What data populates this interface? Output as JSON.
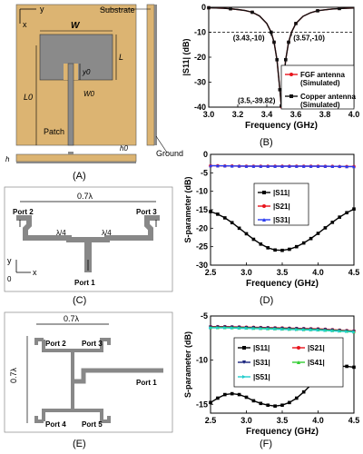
{
  "panels": {
    "A": {
      "caption": "(A)",
      "labels": [
        "Substrate",
        "W",
        "L",
        "y0",
        "L0",
        "W0",
        "Patch",
        "h0",
        "h",
        "Ground"
      ],
      "axis_y": "y",
      "axis_x": "x",
      "colors": {
        "substrate": "#dcb472",
        "metal": "#8a8a8a"
      }
    },
    "B": {
      "caption": "(B)"
    },
    "C": {
      "caption": "(C)",
      "labels": [
        "0.7λ",
        "Port 2",
        "Port 3",
        "λ/4",
        "λ/4",
        "Port 1"
      ],
      "axis_y": "y",
      "axis_x": "x",
      "origin": "0"
    },
    "D": {
      "caption": "(D)"
    },
    "E": {
      "caption": "(E)",
      "labels": [
        "0.7λ",
        "Port 2",
        "Port 3",
        "Port 1",
        "Port 4",
        "Port 5"
      ],
      "side_label": "0.7λ"
    },
    "F": {
      "caption": "(F)"
    }
  },
  "chart_data": [
    {
      "panel": "B",
      "type": "line",
      "xlabel": "Frequency (GHz)",
      "ylabel": "|S11| (dB)",
      "xlim": [
        3.0,
        4.0
      ],
      "ylim": [
        -40,
        0
      ],
      "xticks": [
        "3.0",
        "3.2",
        "3.4",
        "3.6",
        "3.8",
        "4.0"
      ],
      "yticks": [
        "0",
        "-10",
        "-20",
        "-30",
        "-40"
      ],
      "ref_line": -10,
      "annotations": [
        "(3.43,-10)",
        "(3.57,-10)",
        "(3.5,-39.82)"
      ],
      "series": [
        {
          "name": "FGF antenna (Simulated)",
          "color": "#e8141c",
          "x": [
            3.0,
            3.05,
            3.1,
            3.15,
            3.2,
            3.25,
            3.3,
            3.35,
            3.4,
            3.43,
            3.45,
            3.47,
            3.49,
            3.5,
            3.51,
            3.53,
            3.55,
            3.57,
            3.6,
            3.65,
            3.7,
            3.75,
            3.8,
            3.85,
            3.9,
            3.95,
            4.0
          ],
          "y": [
            -0.2,
            -0.3,
            -0.4,
            -0.6,
            -0.9,
            -1.3,
            -2.0,
            -3.5,
            -6.5,
            -10,
            -14,
            -21,
            -33,
            -39.82,
            -33,
            -21,
            -14,
            -10,
            -6.5,
            -3.6,
            -2.2,
            -1.4,
            -1.0,
            -0.7,
            -0.5,
            -0.4,
            -0.3
          ]
        },
        {
          "name": "Copper antenna (Simulated)",
          "color": "#111111",
          "x": [
            3.0,
            3.05,
            3.1,
            3.15,
            3.2,
            3.25,
            3.3,
            3.35,
            3.4,
            3.43,
            3.45,
            3.47,
            3.49,
            3.5,
            3.51,
            3.53,
            3.55,
            3.57,
            3.6,
            3.65,
            3.7,
            3.75,
            3.8,
            3.85,
            3.9,
            3.95,
            4.0
          ],
          "y": [
            -0.2,
            -0.3,
            -0.4,
            -0.6,
            -0.9,
            -1.3,
            -2.0,
            -3.5,
            -6.5,
            -10,
            -14,
            -21,
            -33,
            -39.5,
            -33,
            -21,
            -14,
            -10,
            -6.5,
            -3.6,
            -2.2,
            -1.4,
            -1.0,
            -0.7,
            -0.5,
            -0.4,
            -0.3
          ]
        }
      ]
    },
    {
      "panel": "D",
      "type": "line",
      "xlabel": "Frequency (GHz)",
      "ylabel": "S-parameter (dB)",
      "xlim": [
        2.5,
        4.5
      ],
      "ylim": [
        -30,
        0
      ],
      "xticks": [
        "2.5",
        "3.0",
        "3.5",
        "4.0",
        "4.5"
      ],
      "yticks": [
        "0",
        "-5",
        "-10",
        "-15",
        "-20",
        "-25",
        "-30"
      ],
      "legend": "right",
      "series": [
        {
          "name": "|S11|",
          "color": "#000000",
          "marker": "square",
          "x": [
            2.5,
            2.6,
            2.7,
            2.8,
            2.9,
            3.0,
            3.1,
            3.2,
            3.3,
            3.4,
            3.5,
            3.6,
            3.7,
            3.8,
            3.9,
            4.0,
            4.1,
            4.2,
            4.3,
            4.4,
            4.5
          ],
          "y": [
            -15.5,
            -16.2,
            -17.2,
            -18.5,
            -20.0,
            -21.5,
            -23.0,
            -24.3,
            -25.3,
            -25.9,
            -26.0,
            -25.7,
            -25.0,
            -24.0,
            -22.8,
            -21.4,
            -19.9,
            -18.4,
            -17.0,
            -15.8,
            -14.8
          ]
        },
        {
          "name": "|S21|",
          "color": "#e8141c",
          "marker": "circle",
          "x": [
            2.5,
            2.6,
            2.7,
            2.8,
            2.9,
            3.0,
            3.1,
            3.2,
            3.3,
            3.4,
            3.5,
            3.6,
            3.7,
            3.8,
            3.9,
            4.0,
            4.1,
            4.2,
            4.3,
            4.4,
            4.5
          ],
          "y": [
            -3.1,
            -3.1,
            -3.15,
            -3.15,
            -3.2,
            -3.2,
            -3.2,
            -3.2,
            -3.2,
            -3.2,
            -3.2,
            -3.2,
            -3.2,
            -3.2,
            -3.2,
            -3.2,
            -3.25,
            -3.25,
            -3.3,
            -3.3,
            -3.3
          ]
        },
        {
          "name": "|S31|",
          "color": "#2a3cf0",
          "marker": "triangle",
          "x": [
            2.5,
            2.6,
            2.7,
            2.8,
            2.9,
            3.0,
            3.1,
            3.2,
            3.3,
            3.4,
            3.5,
            3.6,
            3.7,
            3.8,
            3.9,
            4.0,
            4.1,
            4.2,
            4.3,
            4.4,
            4.5
          ],
          "y": [
            -3.05,
            -3.1,
            -3.1,
            -3.15,
            -3.15,
            -3.2,
            -3.2,
            -3.2,
            -3.2,
            -3.2,
            -3.2,
            -3.2,
            -3.2,
            -3.2,
            -3.2,
            -3.2,
            -3.2,
            -3.25,
            -3.25,
            -3.3,
            -3.3
          ]
        }
      ]
    },
    {
      "panel": "F",
      "type": "line",
      "xlabel": "Frequency (GHz)",
      "ylabel": "S-parameter (dB)",
      "xlim": [
        2.5,
        4.5
      ],
      "ylim": [
        -16,
        -5
      ],
      "xticks": [
        "2.5",
        "3.0",
        "3.5",
        "4.0",
        "4.5"
      ],
      "yticks": [
        "-5",
        "-10",
        "-15"
      ],
      "legend": "center",
      "series": [
        {
          "name": "|S11|",
          "color": "#000000",
          "marker": "square",
          "x": [
            2.5,
            2.6,
            2.7,
            2.8,
            2.9,
            3.0,
            3.1,
            3.2,
            3.3,
            3.4,
            3.5,
            3.6,
            3.7,
            3.8,
            3.9,
            4.0,
            4.1,
            4.2,
            4.3,
            4.4,
            4.5
          ],
          "y": [
            -14.8,
            -14.3,
            -13.9,
            -13.8,
            -13.9,
            -14.2,
            -14.6,
            -14.9,
            -15.1,
            -15.2,
            -15.1,
            -14.8,
            -14.3,
            -13.6,
            -12.8,
            -12.0,
            -11.3,
            -10.9,
            -10.7,
            -10.7,
            -10.8
          ]
        },
        {
          "name": "|S21|",
          "color": "#e8141c",
          "marker": "circle",
          "x": [
            2.5,
            2.6,
            2.7,
            2.8,
            2.9,
            3.0,
            3.1,
            3.2,
            3.3,
            3.4,
            3.5,
            3.6,
            3.7,
            3.8,
            3.9,
            4.0,
            4.1,
            4.2,
            4.3,
            4.4,
            4.5
          ],
          "y": [
            -6.2,
            -6.2,
            -6.2,
            -6.22,
            -6.24,
            -6.26,
            -6.28,
            -6.3,
            -6.32,
            -6.34,
            -6.36,
            -6.38,
            -6.4,
            -6.42,
            -6.44,
            -6.46,
            -6.5,
            -6.55,
            -6.6,
            -6.65,
            -6.7
          ]
        },
        {
          "name": "|S31|",
          "color": "#1a237e",
          "marker": "triangle-down",
          "x": [
            2.5,
            2.6,
            2.7,
            2.8,
            2.9,
            3.0,
            3.1,
            3.2,
            3.3,
            3.4,
            3.5,
            3.6,
            3.7,
            3.8,
            3.9,
            4.0,
            4.1,
            4.2,
            4.3,
            4.4,
            4.5
          ],
          "y": [
            -6.25,
            -6.25,
            -6.25,
            -6.27,
            -6.29,
            -6.31,
            -6.33,
            -6.35,
            -6.37,
            -6.39,
            -6.41,
            -6.43,
            -6.45,
            -6.47,
            -6.49,
            -6.51,
            -6.55,
            -6.6,
            -6.65,
            -6.7,
            -6.75
          ]
        },
        {
          "name": "|S41|",
          "color": "#33cc33",
          "marker": "triangle",
          "x": [
            2.5,
            2.6,
            2.7,
            2.8,
            2.9,
            3.0,
            3.1,
            3.2,
            3.3,
            3.4,
            3.5,
            3.6,
            3.7,
            3.8,
            3.9,
            4.0,
            4.1,
            4.2,
            4.3,
            4.4,
            4.5
          ],
          "y": [
            -6.3,
            -6.3,
            -6.3,
            -6.32,
            -6.34,
            -6.36,
            -6.38,
            -6.4,
            -6.42,
            -6.44,
            -6.46,
            -6.48,
            -6.5,
            -6.52,
            -6.54,
            -6.56,
            -6.6,
            -6.64,
            -6.68,
            -6.72,
            -6.78
          ]
        },
        {
          "name": "|S51|",
          "color": "#22cccc",
          "marker": "triangle-right",
          "x": [
            2.5,
            2.6,
            2.7,
            2.8,
            2.9,
            3.0,
            3.1,
            3.2,
            3.3,
            3.4,
            3.5,
            3.6,
            3.7,
            3.8,
            3.9,
            4.0,
            4.1,
            4.2,
            4.3,
            4.4,
            4.5
          ],
          "y": [
            -6.35,
            -6.35,
            -6.35,
            -6.37,
            -6.39,
            -6.41,
            -6.43,
            -6.45,
            -6.47,
            -6.49,
            -6.51,
            -6.53,
            -6.55,
            -6.57,
            -6.59,
            -6.61,
            -6.65,
            -6.69,
            -6.73,
            -6.77,
            -6.82
          ]
        }
      ]
    }
  ]
}
